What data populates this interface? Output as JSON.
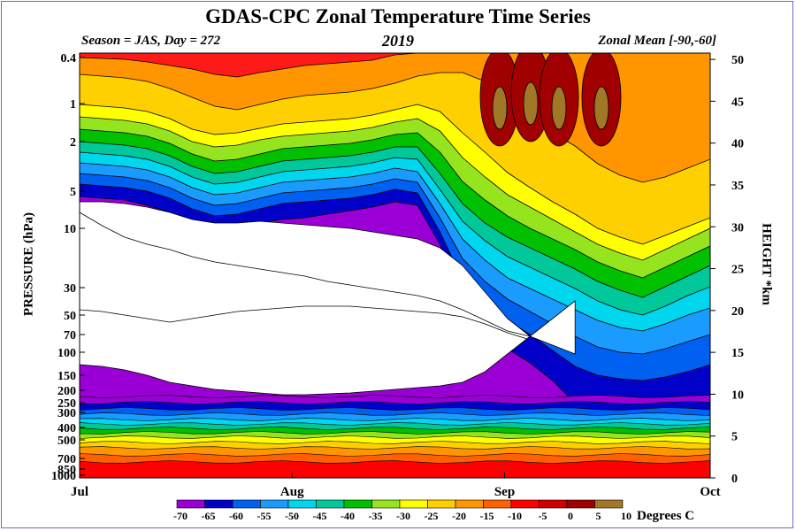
{
  "chart_data": {
    "type": "heatmap",
    "title": "GDAS-CPC Zonal Temperature Time Series",
    "season_label": "Season = JAS, Day = 272",
    "year_label": "2019",
    "zonal_label": "Zonal Mean [-90,-60]",
    "ylabel": "PRESSURE (hPa)",
    "ylabel_right": "HEIGHT *km",
    "legend_units": "Degrees C",
    "pressure_ticks": [
      "0.4",
      "1",
      "2",
      "5",
      "10",
      "30",
      "50",
      "70",
      "100",
      "150",
      "200",
      "250",
      "300",
      "400",
      "500",
      "700",
      "850",
      "1000"
    ],
    "height_ticks": [
      "0",
      "5",
      "10",
      "15",
      "20",
      "25",
      "30",
      "35",
      "40",
      "45",
      "50"
    ],
    "x_ticks": [
      "Jul",
      "Aug",
      "Sep",
      "Oct"
    ],
    "levels": [
      -70,
      -65,
      -60,
      -55,
      -50,
      -45,
      -40,
      -35,
      -30,
      -25,
      -20,
      -15,
      -10,
      -5,
      0,
      5,
      10
    ],
    "legend_labels": [
      "-70",
      "-65",
      "-60",
      "-55",
      "-50",
      "-45",
      "-40",
      "-35",
      "-30",
      "-25",
      "-20",
      "-15",
      "-10",
      "-5",
      "0",
      "5",
      "10"
    ],
    "level_colors": [
      "#9a00d6",
      "#0000c8",
      "#0060f0",
      "#1a9cff",
      "#00d6ee",
      "#00c89a",
      "#00c000",
      "#96e41e",
      "#ffff00",
      "#ffd000",
      "#ff9600",
      "#ff6000",
      "#ff0000",
      "#d00000",
      "#a00000",
      "#a07828",
      "#707070",
      "#9a9a9a"
    ]
  }
}
